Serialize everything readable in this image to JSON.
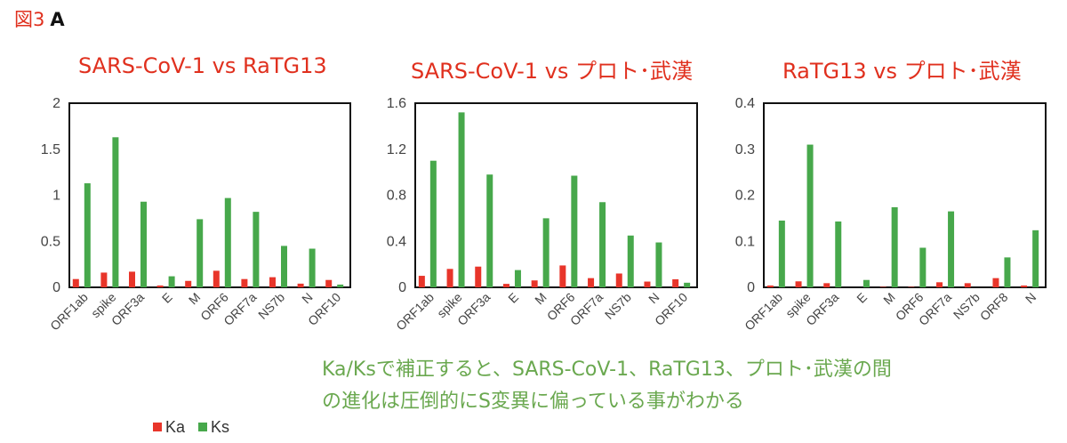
{
  "figure_label": {
    "prefix": "図3",
    "letter": "A"
  },
  "colors": {
    "ka": "#e8352a",
    "ks": "#47a84b",
    "title": "#e0301e",
    "note": "#6aa84f"
  },
  "legend": {
    "ka": "Ka",
    "ks": "Ks"
  },
  "note": {
    "line1": "Ka/Ksで補正すると、SARS-CoV-1、RaTG13、プロト･武漢の間",
    "line2": "の進化は圧倒的にS変異に偏っている事がわかる"
  },
  "chart_data": [
    {
      "type": "bar",
      "title": "SARS-CoV-1 vs RaTG13",
      "categories": [
        "ORF1ab",
        "spike",
        "ORF3a",
        "E",
        "M",
        "ORF6",
        "ORF7a",
        "NS7b",
        "N",
        "ORF10"
      ],
      "ylim": [
        0,
        2
      ],
      "yticks": [
        "0",
        "0.5",
        "1",
        "1.5",
        "2"
      ],
      "grid": false,
      "legend_position": "bottom-left",
      "series": [
        {
          "name": "Ka",
          "values": [
            0.09,
            0.16,
            0.17,
            0.02,
            0.07,
            0.18,
            0.09,
            0.11,
            0.04,
            0.08
          ]
        },
        {
          "name": "Ks",
          "values": [
            1.13,
            1.63,
            0.93,
            0.12,
            0.74,
            0.97,
            0.82,
            0.45,
            0.42,
            0.03
          ]
        }
      ]
    },
    {
      "type": "bar",
      "title": "SARS-CoV-1 vs プロト･武漢",
      "categories": [
        "ORF1ab",
        "spike",
        "ORF3a",
        "E",
        "M",
        "ORF6",
        "ORF7a",
        "NS7b",
        "N",
        "ORF10"
      ],
      "ylim": [
        0,
        1.6
      ],
      "yticks": [
        "0",
        "0.4",
        "0.8",
        "1.2",
        "1.6"
      ],
      "grid": false,
      "legend_position": "bottom-left",
      "series": [
        {
          "name": "Ka",
          "values": [
            0.1,
            0.16,
            0.18,
            0.03,
            0.06,
            0.19,
            0.08,
            0.12,
            0.05,
            0.07
          ]
        },
        {
          "name": "Ks",
          "values": [
            1.1,
            1.52,
            0.98,
            0.15,
            0.6,
            0.97,
            0.74,
            0.45,
            0.39,
            0.04
          ]
        }
      ]
    },
    {
      "type": "bar",
      "title": "RaTG13 vs プロト･武漢",
      "categories": [
        "ORF1ab",
        "spike",
        "ORF3a",
        "E",
        "M",
        "ORF6",
        "ORF7a",
        "NS7b",
        "ORF8",
        "N"
      ],
      "ylim": [
        0,
        0.4
      ],
      "yticks": [
        "0",
        "0.1",
        "0.2",
        "0.3",
        "0.4"
      ],
      "grid": false,
      "legend_position": "bottom-left",
      "series": [
        {
          "name": "Ka",
          "values": [
            0.004,
            0.013,
            0.009,
            0.0,
            0.001,
            0.001,
            0.011,
            0.009,
            0.02,
            0.004
          ]
        },
        {
          "name": "Ks",
          "values": [
            0.145,
            0.31,
            0.143,
            0.016,
            0.174,
            0.086,
            0.165,
            0.0,
            0.065,
            0.124
          ]
        }
      ]
    }
  ]
}
